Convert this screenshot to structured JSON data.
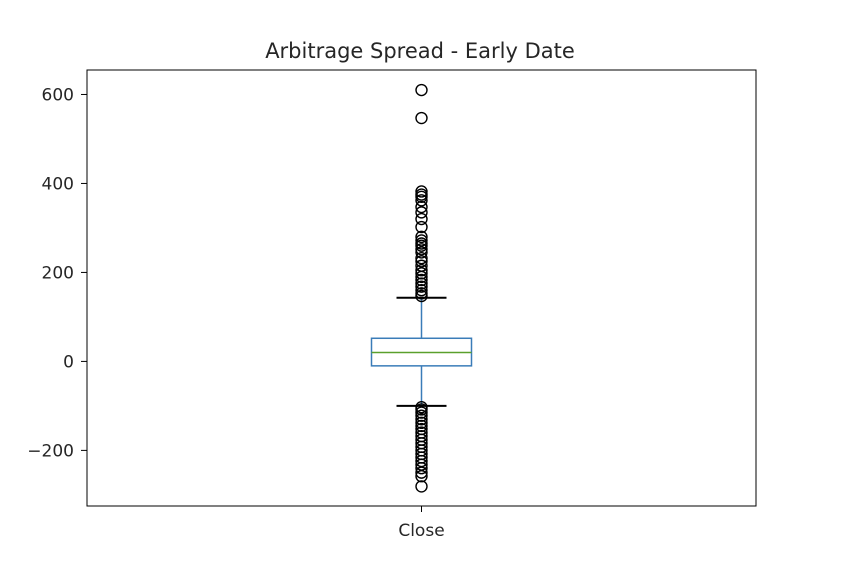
{
  "chart_data": {
    "type": "box",
    "title": "Arbitrage Spread - Early Date",
    "xlabel": "",
    "ylabel": "",
    "ylim": [
      -325,
      655
    ],
    "yticks": [
      -200,
      0,
      200,
      400,
      600
    ],
    "ytick_labels": [
      "−200",
      "0",
      "200",
      "400",
      "600"
    ],
    "categories": [
      "Close"
    ],
    "grid": false,
    "boxes": [
      {
        "category": "Close",
        "whisker_low": -100,
        "q1": -10,
        "median": 20,
        "q3": 52,
        "whisker_high": 143,
        "fliers_high": [
          610,
          547,
          382,
          375,
          370,
          362,
          347,
          335,
          320,
          302,
          280,
          272,
          265,
          260,
          252,
          245,
          232,
          225,
          215,
          205,
          198,
          190,
          183,
          175,
          168,
          160,
          153,
          147
        ],
        "fliers_low": [
          -103,
          -108,
          -115,
          -122,
          -130,
          -138,
          -145,
          -152,
          -160,
          -168,
          -176,
          -184,
          -192,
          -200,
          -208,
          -216,
          -224,
          -232,
          -240,
          -250,
          -258,
          -281
        ]
      }
    ],
    "colors": {
      "box": "#3a7cb8",
      "median": "#5aa02c",
      "whisker": "#3a7cb8",
      "cap": "#000000",
      "flier": "#000000",
      "axes": "#000000",
      "text": "#262626"
    }
  }
}
